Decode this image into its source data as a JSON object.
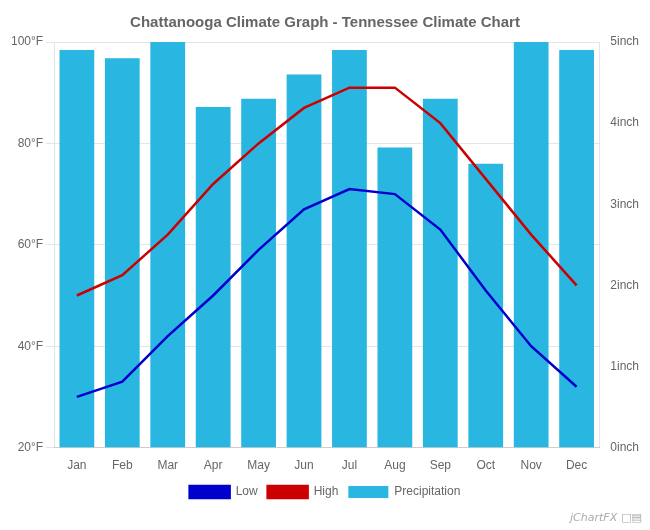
{
  "chart_data": {
    "type": "bar",
    "title": "Chattanooga Climate Graph - Tennessee Climate Chart",
    "categories": [
      "Jan",
      "Feb",
      "Mar",
      "Apr",
      "May",
      "Jun",
      "Jul",
      "Aug",
      "Sep",
      "Oct",
      "Nov",
      "Dec"
    ],
    "series": [
      {
        "name": "Low",
        "type": "line",
        "color": "#0000cc",
        "values": [
          30,
          33,
          42,
          50,
          59,
          67,
          71,
          70,
          63,
          51,
          40,
          32
        ]
      },
      {
        "name": "High",
        "type": "line",
        "color": "#cc0000",
        "values": [
          50,
          54,
          62,
          72,
          80,
          87,
          91,
          91,
          84,
          73,
          62,
          52
        ]
      },
      {
        "name": "Precipitation",
        "type": "bar",
        "color": "#29b6e0",
        "axis": "y2",
        "values": [
          4.9,
          4.8,
          5.0,
          4.2,
          4.3,
          4.6,
          4.9,
          3.7,
          4.3,
          3.5,
          5.0,
          4.9
        ]
      }
    ],
    "ylim": [
      20,
      100
    ],
    "yticks": [
      {
        "value": 20,
        "label": "20°F"
      },
      {
        "value": 40,
        "label": "40°F"
      },
      {
        "value": 60,
        "label": "60°F"
      },
      {
        "value": 80,
        "label": "80°F"
      },
      {
        "value": 100,
        "label": "100°F"
      }
    ],
    "y2lim": [
      0,
      5
    ],
    "y2ticks": [
      {
        "value": 0,
        "label": "0inch"
      },
      {
        "value": 1,
        "label": "1inch"
      },
      {
        "value": 2,
        "label": "2inch"
      },
      {
        "value": 3,
        "label": "3inch"
      },
      {
        "value": 4,
        "label": "4inch"
      },
      {
        "value": 5,
        "label": "5inch"
      }
    ],
    "grid": true,
    "legend": "bottom",
    "annotations": [
      "jChartFX",
      "□▤"
    ]
  }
}
